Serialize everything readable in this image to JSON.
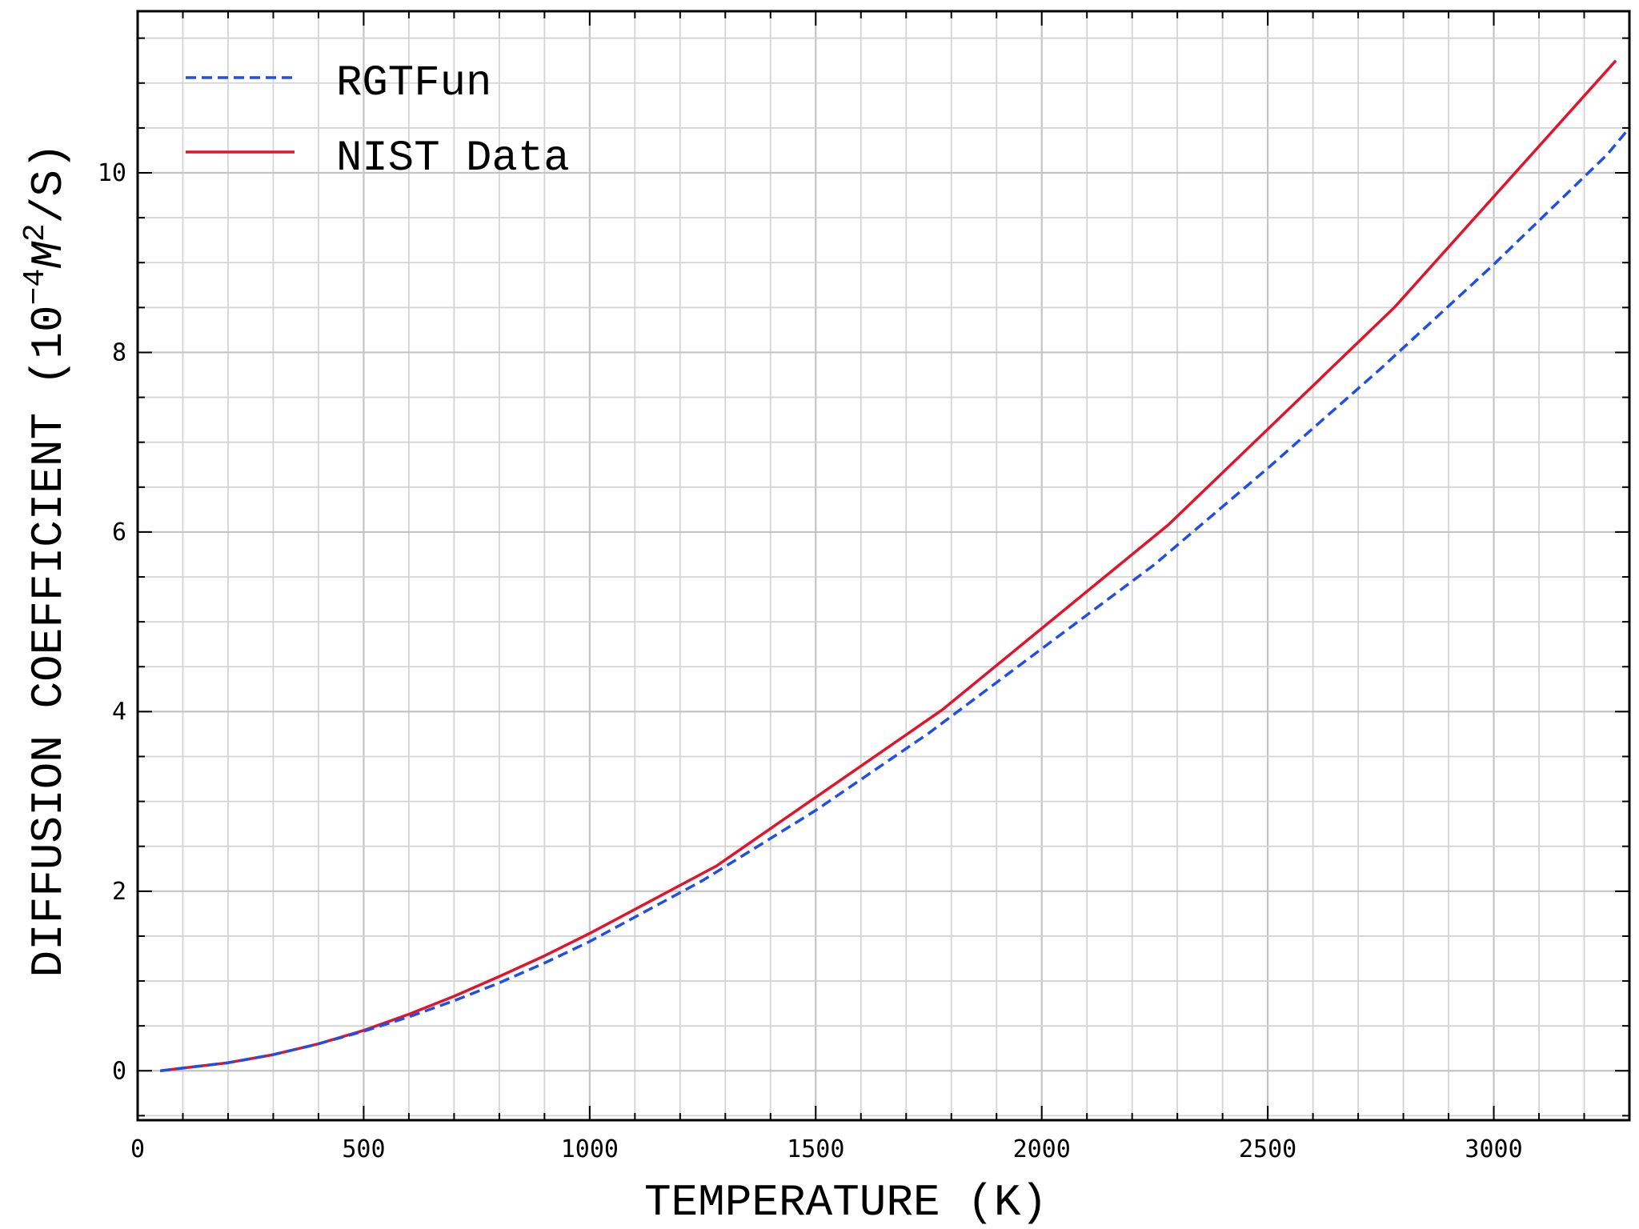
{
  "chart_data": {
    "type": "line",
    "title": "",
    "xlabel": "TEMPERATURE (K)",
    "ylabel_prefix": "DIFFUSION COEFFICIENT (10",
    "ylabel_exponent": "−4",
    "ylabel_unit_m": "M",
    "ylabel_unit_m_exponent": "2",
    "ylabel_unit_rest": "/S)",
    "xlim": [
      0,
      3300
    ],
    "ylim": [
      -0.55,
      11.8
    ],
    "x_ticks": [
      0,
      500,
      1000,
      1500,
      2000,
      2500,
      3000
    ],
    "x_tick_labels": [
      "0",
      "500",
      "1000",
      "1500",
      "2000",
      "2500",
      "3000"
    ],
    "y_ticks": [
      0,
      2,
      4,
      6,
      8,
      10
    ],
    "y_tick_labels": [
      "0",
      "2",
      "4",
      "6",
      "8",
      "10"
    ],
    "grid": true,
    "legend_position": "top-left",
    "series": [
      {
        "name": "RGTFun",
        "color": "#1f4fe8",
        "style": "dashed",
        "x": [
          50,
          100,
          200,
          300,
          400,
          500,
          600,
          700,
          800,
          900,
          1000,
          1250,
          1500,
          1750,
          2000,
          2250,
          2500,
          2750,
          3000,
          3250,
          3300
        ],
        "y": [
          0.0,
          0.03,
          0.09,
          0.18,
          0.3,
          0.44,
          0.6,
          0.78,
          0.98,
          1.2,
          1.44,
          2.12,
          2.9,
          3.76,
          4.7,
          5.64,
          6.71,
          7.82,
          8.98,
          10.2,
          10.5
        ]
      },
      {
        "name": "NIST Data",
        "color": "#e0142b",
        "style": "solid",
        "x": [
          50,
          100,
          200,
          300,
          400,
          500,
          600,
          700,
          800,
          900,
          1000,
          1280,
          1780,
          2280,
          2780,
          3270
        ],
        "y": [
          0.0,
          0.03,
          0.09,
          0.18,
          0.3,
          0.45,
          0.63,
          0.83,
          1.05,
          1.28,
          1.53,
          2.28,
          4.02,
          6.08,
          8.5,
          11.25
        ]
      }
    ]
  }
}
